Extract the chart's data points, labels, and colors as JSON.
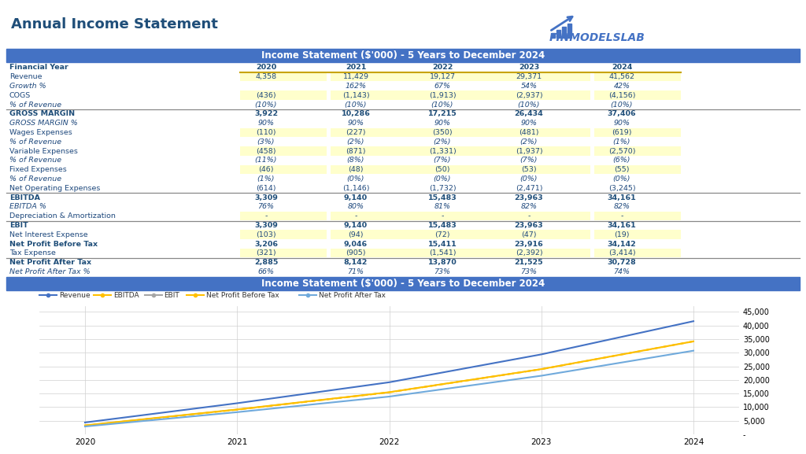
{
  "title": "Annual Income Statement",
  "table_header": "Income Statement ($'000) - 5 Years to December 2024",
  "rows": [
    {
      "label": "Financial Year",
      "bold": true,
      "italic": false,
      "highlight": false,
      "separator_above": false,
      "values": [
        "2020",
        "2021",
        "2022",
        "2023",
        "2024"
      ],
      "header_row": true
    },
    {
      "label": "Revenue",
      "bold": false,
      "italic": false,
      "highlight": true,
      "separator_above": false,
      "values": [
        "4,358",
        "11,429",
        "19,127",
        "29,371",
        "41,562"
      ]
    },
    {
      "label": "Growth %",
      "bold": false,
      "italic": true,
      "highlight": false,
      "separator_above": false,
      "values": [
        "",
        "162%",
        "67%",
        "54%",
        "42%"
      ]
    },
    {
      "label": "COGS",
      "bold": false,
      "italic": false,
      "highlight": true,
      "separator_above": false,
      "values": [
        "(436)",
        "(1,143)",
        "(1,913)",
        "(2,937)",
        "(4,156)"
      ]
    },
    {
      "label": "% of Revenue",
      "bold": false,
      "italic": true,
      "highlight": false,
      "separator_above": false,
      "values": [
        "(10%)",
        "(10%)",
        "(10%)",
        "(10%)",
        "(10%)"
      ]
    },
    {
      "label": "GROSS MARGIN",
      "bold": true,
      "italic": false,
      "highlight": false,
      "separator_above": true,
      "values": [
        "3,922",
        "10,286",
        "17,215",
        "26,434",
        "37,406"
      ]
    },
    {
      "label": "GROSS MARGIN %",
      "bold": false,
      "italic": true,
      "highlight": false,
      "separator_above": false,
      "values": [
        "90%",
        "90%",
        "90%",
        "90%",
        "90%"
      ]
    },
    {
      "label": "Wages Expenses",
      "bold": false,
      "italic": false,
      "highlight": true,
      "separator_above": false,
      "values": [
        "(110)",
        "(227)",
        "(350)",
        "(481)",
        "(619)"
      ]
    },
    {
      "label": "% of Revenue",
      "bold": false,
      "italic": true,
      "highlight": false,
      "separator_above": false,
      "values": [
        "(3%)",
        "(2%)",
        "(2%)",
        "(2%)",
        "(1%)"
      ]
    },
    {
      "label": "Variable Expenses",
      "bold": false,
      "italic": false,
      "highlight": true,
      "separator_above": false,
      "values": [
        "(458)",
        "(871)",
        "(1,331)",
        "(1,937)",
        "(2,570)"
      ]
    },
    {
      "label": "% of Revenue",
      "bold": false,
      "italic": true,
      "highlight": false,
      "separator_above": false,
      "values": [
        "(11%)",
        "(8%)",
        "(7%)",
        "(7%)",
        "(6%)"
      ]
    },
    {
      "label": "Fixed Expenses",
      "bold": false,
      "italic": false,
      "highlight": true,
      "separator_above": false,
      "values": [
        "(46)",
        "(48)",
        "(50)",
        "(53)",
        "(55)"
      ]
    },
    {
      "label": "% of Revenue",
      "bold": false,
      "italic": true,
      "highlight": false,
      "separator_above": false,
      "values": [
        "(1%)",
        "(0%)",
        "(0%)",
        "(0%)",
        "(0%)"
      ]
    },
    {
      "label": "Net Operating Expenses",
      "bold": false,
      "italic": false,
      "highlight": false,
      "separator_above": false,
      "values": [
        "(614)",
        "(1,146)",
        "(1,732)",
        "(2,471)",
        "(3,245)"
      ]
    },
    {
      "label": "EBITDA",
      "bold": true,
      "italic": false,
      "highlight": false,
      "separator_above": true,
      "values": [
        "3,309",
        "9,140",
        "15,483",
        "23,963",
        "34,161"
      ]
    },
    {
      "label": "EBITDA %",
      "bold": false,
      "italic": true,
      "highlight": false,
      "separator_above": false,
      "values": [
        "76%",
        "80%",
        "81%",
        "82%",
        "82%"
      ]
    },
    {
      "label": "Depreciation & Amortization",
      "bold": false,
      "italic": false,
      "highlight": true,
      "separator_above": false,
      "values": [
        "-",
        "-",
        "-",
        "-",
        "-"
      ]
    },
    {
      "label": "EBIT",
      "bold": true,
      "italic": false,
      "highlight": false,
      "separator_above": true,
      "values": [
        "3,309",
        "9,140",
        "15,483",
        "23,963",
        "34,161"
      ]
    },
    {
      "label": "Net Interest Expense",
      "bold": false,
      "italic": false,
      "highlight": true,
      "separator_above": false,
      "values": [
        "(103)",
        "(94)",
        "(72)",
        "(47)",
        "(19)"
      ]
    },
    {
      "label": "Net Profit Before Tax",
      "bold": true,
      "italic": false,
      "highlight": false,
      "separator_above": false,
      "values": [
        "3,206",
        "9,046",
        "15,411",
        "23,916",
        "34,142"
      ]
    },
    {
      "label": "Tax Expense",
      "bold": false,
      "italic": false,
      "highlight": true,
      "separator_above": false,
      "values": [
        "(321)",
        "(905)",
        "(1,541)",
        "(2,392)",
        "(3,414)"
      ]
    },
    {
      "label": "Net Profit After Tax",
      "bold": true,
      "italic": false,
      "highlight": false,
      "separator_above": true,
      "values": [
        "2,885",
        "8,142",
        "13,870",
        "21,525",
        "30,728"
      ]
    },
    {
      "label": "Net Profit After Tax %",
      "bold": false,
      "italic": true,
      "highlight": false,
      "separator_above": false,
      "values": [
        "66%",
        "71%",
        "73%",
        "73%",
        "74%"
      ]
    }
  ],
  "chart_years": [
    2020,
    2021,
    2022,
    2023,
    2024
  ],
  "revenue": [
    4358,
    11429,
    19127,
    29371,
    41562
  ],
  "ebitda": [
    3309,
    9140,
    15483,
    23963,
    34161
  ],
  "ebit": [
    3309,
    9140,
    15483,
    23963,
    34161
  ],
  "npbt": [
    3206,
    9046,
    15411,
    23916,
    34142
  ],
  "npat": [
    2885,
    8142,
    13870,
    21525,
    30728
  ],
  "header_bg": "#4472c4",
  "header_fg": "#ffffff",
  "label_dark": "#1f4e79",
  "value_blue": "#1f497d",
  "highlight_yellow": "#ffffcc",
  "title_color": "#1f4e79",
  "separator_color": "#888888",
  "gold_line": "#c8a400",
  "line_revenue": "#4472c4",
  "line_ebitda": "#ffc000",
  "line_ebit": "#a6a6a6",
  "line_npbt": "#ffc000",
  "line_npat": "#70aadc",
  "bg_color": "#ffffff"
}
